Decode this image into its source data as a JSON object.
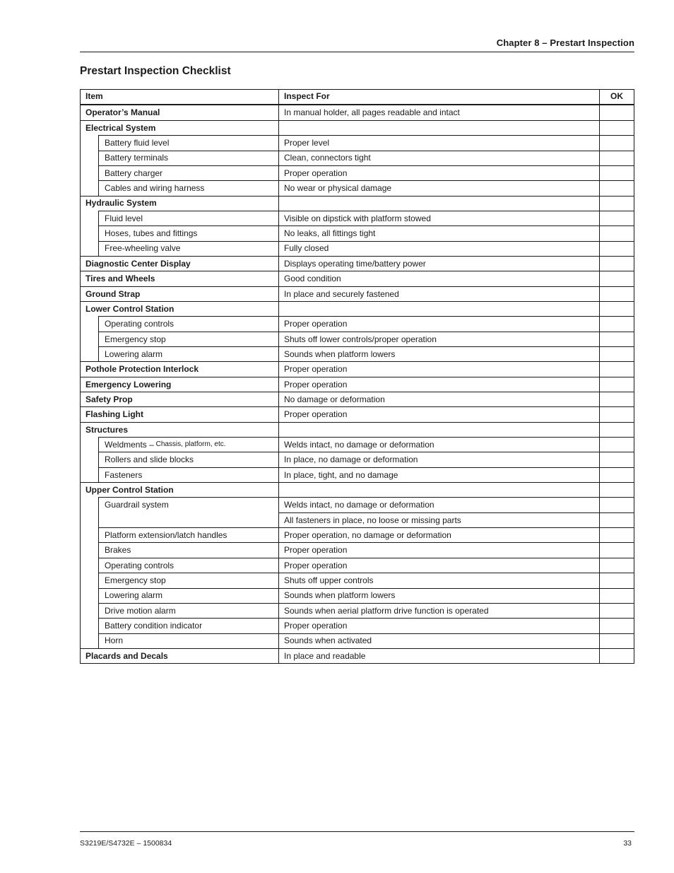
{
  "header": {
    "chapter": "Chapter 8 – Prestart Inspection"
  },
  "title": "Prestart Inspection Checklist",
  "table": {
    "columns": [
      "Item",
      "Inspect For",
      "OK"
    ],
    "rows": [
      {
        "type": "section",
        "item": "Operator’s Manual",
        "inspect": "In manual holder, all pages readable and intact",
        "ok": ""
      },
      {
        "type": "section",
        "item": "Electrical System",
        "inspect": "",
        "ok": ""
      },
      {
        "type": "sub",
        "item": "Battery fluid level",
        "inspect": "Proper level",
        "ok": ""
      },
      {
        "type": "sub",
        "item": "Battery terminals",
        "inspect": "Clean, connectors tight",
        "ok": ""
      },
      {
        "type": "sub",
        "item": "Battery charger",
        "inspect": "Proper operation",
        "ok": ""
      },
      {
        "type": "sub",
        "item": "Cables and wiring harness",
        "inspect": "No wear or physical damage",
        "ok": ""
      },
      {
        "type": "section",
        "item": "Hydraulic System",
        "inspect": "",
        "ok": ""
      },
      {
        "type": "sub",
        "item": "Fluid level",
        "inspect": "Visible on dipstick with platform stowed",
        "ok": ""
      },
      {
        "type": "sub",
        "item": "Hoses, tubes and fittings",
        "inspect": "No leaks, all fittings tight",
        "ok": ""
      },
      {
        "type": "sub",
        "item": "Free-wheeling valve",
        "inspect": "Fully closed",
        "ok": ""
      },
      {
        "type": "section",
        "item": "Diagnostic Center Display",
        "inspect": "Displays operating time/battery power",
        "ok": ""
      },
      {
        "type": "section",
        "item": "Tires and Wheels",
        "inspect": "Good condition",
        "ok": ""
      },
      {
        "type": "section",
        "item": "Ground Strap",
        "inspect": "In place and securely fastened",
        "ok": ""
      },
      {
        "type": "section",
        "item": "Lower Control Station",
        "inspect": "",
        "ok": ""
      },
      {
        "type": "sub",
        "item": "Operating controls",
        "inspect": "Proper operation",
        "ok": ""
      },
      {
        "type": "sub",
        "item": "Emergency stop",
        "inspect": "Shuts off lower controls/proper operation",
        "ok": ""
      },
      {
        "type": "sub",
        "item": "Lowering alarm",
        "inspect": "Sounds when platform lowers",
        "ok": ""
      },
      {
        "type": "section",
        "item": "Pothole Protection Interlock",
        "inspect": "Proper operation",
        "ok": ""
      },
      {
        "type": "section",
        "item": "Emergency Lowering",
        "inspect": "Proper operation",
        "ok": ""
      },
      {
        "type": "section",
        "item": "Safety Prop",
        "inspect": "No damage or deformation",
        "ok": ""
      },
      {
        "type": "section",
        "item": "Flashing Light",
        "inspect": "Proper operation",
        "ok": ""
      },
      {
        "type": "section",
        "item": "Structures",
        "inspect": "",
        "ok": ""
      },
      {
        "type": "sub",
        "item": "Weldments –",
        "item_small": "Chassis, platform, etc.",
        "inspect": "Welds intact, no damage or deformation",
        "ok": ""
      },
      {
        "type": "sub",
        "item": "Rollers and slide blocks",
        "inspect": "In place, no damage or deformation",
        "ok": ""
      },
      {
        "type": "sub",
        "item": "Fasteners",
        "inspect": "In place, tight, and no damage",
        "ok": ""
      },
      {
        "type": "section",
        "item": "Upper Control Station",
        "inspect": "",
        "ok": ""
      },
      {
        "type": "sub",
        "item": "Guardrail system",
        "inspect": "Welds intact, no damage or deformation",
        "ok": ""
      },
      {
        "type": "subcont",
        "item": "",
        "inspect": "All fasteners in place, no loose or missing parts",
        "ok": ""
      },
      {
        "type": "sub",
        "item": "Platform extension/latch handles",
        "inspect": "Proper operation, no damage or deformation",
        "ok": ""
      },
      {
        "type": "sub",
        "item": "Brakes",
        "inspect": "Proper operation",
        "ok": ""
      },
      {
        "type": "sub",
        "item": "Operating controls",
        "inspect": "Proper operation",
        "ok": ""
      },
      {
        "type": "sub",
        "item": "Emergency stop",
        "inspect": "Shuts off upper controls",
        "ok": ""
      },
      {
        "type": "sub",
        "item": "Lowering alarm",
        "inspect": "Sounds when platform lowers",
        "ok": ""
      },
      {
        "type": "sub",
        "item": "Drive motion alarm",
        "inspect": "Sounds when aerial platform drive function is operated",
        "ok": ""
      },
      {
        "type": "sub",
        "item": "Battery condition indicator",
        "inspect": "Proper operation",
        "ok": ""
      },
      {
        "type": "sub",
        "item": "Horn",
        "inspect": "Sounds when activated",
        "ok": ""
      },
      {
        "type": "section",
        "item": "Placards and Decals",
        "inspect": "In place and readable",
        "ok": ""
      }
    ]
  },
  "footer": {
    "left": "S3219E/S4732E – 1500834",
    "page_number": "33"
  }
}
